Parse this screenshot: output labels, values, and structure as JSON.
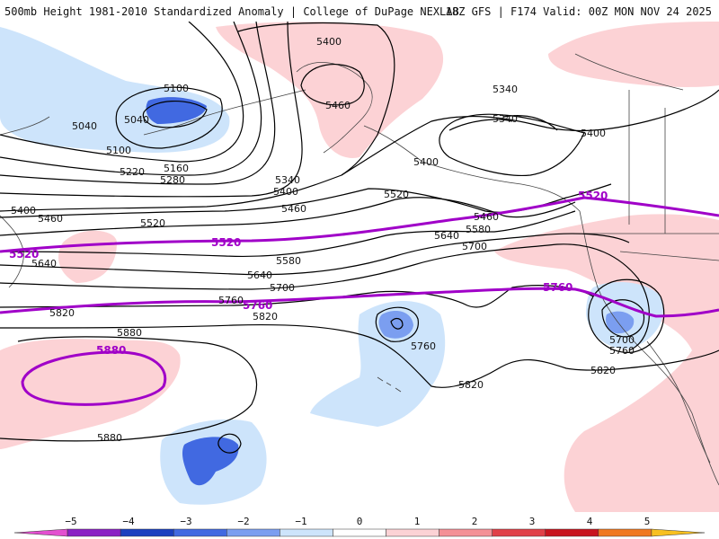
{
  "header": {
    "left": "500mb Height 1981-2010 Standardized Anomaly | College of DuPage NEXLAB",
    "right": "18Z GFS | F174 Valid: 00Z MON NOV 24 2025"
  },
  "colors": {
    "neg3": "#4169e1",
    "neg2": "#7b9ef0",
    "neg1": "#cde4fb",
    "pos1": "#fcd2d5",
    "pos2": "#f49096",
    "contour": "#000000",
    "highlight": "#a000c8",
    "coast": "#444444"
  },
  "contour_labels": [
    {
      "id": "5400-top",
      "text": "5400"
    },
    {
      "id": "5460-ak",
      "text": "5460"
    },
    {
      "id": "5340-a",
      "text": "5340"
    },
    {
      "id": "5340-b",
      "text": "5340"
    },
    {
      "id": "5400-ca",
      "text": "5400"
    },
    {
      "id": "5100-a",
      "text": "5100"
    },
    {
      "id": "5040-a",
      "text": "5040"
    },
    {
      "id": "5040-b",
      "text": "5040"
    },
    {
      "id": "5100-b",
      "text": "5100"
    },
    {
      "id": "5160",
      "text": "5160"
    },
    {
      "id": "5220",
      "text": "5220"
    },
    {
      "id": "5280",
      "text": "5280"
    },
    {
      "id": "5340-c",
      "text": "5340"
    },
    {
      "id": "5400-m",
      "text": "5400"
    },
    {
      "id": "5400-e",
      "text": "5400"
    },
    {
      "id": "5400-w",
      "text": "5400"
    },
    {
      "id": "5460-w",
      "text": "5460"
    },
    {
      "id": "5460-m",
      "text": "5460"
    },
    {
      "id": "5460-e",
      "text": "5460"
    },
    {
      "id": "5520-m",
      "text": "5520"
    },
    {
      "id": "5520-c",
      "text": "5520"
    },
    {
      "id": "5580",
      "text": "5580"
    },
    {
      "id": "5580-b",
      "text": "5580"
    },
    {
      "id": "5640-w",
      "text": "5640"
    },
    {
      "id": "5640-m",
      "text": "5640"
    },
    {
      "id": "5640-e",
      "text": "5640"
    },
    {
      "id": "5700-m",
      "text": "5700"
    },
    {
      "id": "5700-e",
      "text": "5700"
    },
    {
      "id": "5700-lo",
      "text": "5700"
    },
    {
      "id": "5760-m",
      "text": "5760"
    },
    {
      "id": "5760-hi",
      "text": "5760"
    },
    {
      "id": "5760-lo",
      "text": "5760"
    },
    {
      "id": "5820-w",
      "text": "5820"
    },
    {
      "id": "5820-m",
      "text": "5820"
    },
    {
      "id": "5820-s",
      "text": "5820"
    },
    {
      "id": "5820-e",
      "text": "5820"
    },
    {
      "id": "5880-w",
      "text": "5880"
    },
    {
      "id": "5880-s",
      "text": "5880"
    }
  ],
  "highlight_labels": [
    {
      "id": "p5520-w",
      "text": "5520"
    },
    {
      "id": "p5520-m",
      "text": "5520"
    },
    {
      "id": "p5520-e",
      "text": "5520"
    },
    {
      "id": "p5760-m",
      "text": "5760"
    },
    {
      "id": "p5760-e",
      "text": "5760"
    },
    {
      "id": "p5880",
      "text": "5880"
    }
  ],
  "colorbar": {
    "ticks": [
      "−5",
      "−4",
      "−3",
      "−2",
      "−1",
      "0",
      "1",
      "2",
      "3",
      "4",
      "5"
    ],
    "segments": [
      "#e34fd0",
      "#8a1fc4",
      "#1b3fbf",
      "#4169e1",
      "#7b9ef0",
      "#cde4fb",
      "#ffffff",
      "#fcd2d5",
      "#f49096",
      "#e04048",
      "#c8141e",
      "#f07820",
      "#f8c020"
    ]
  }
}
